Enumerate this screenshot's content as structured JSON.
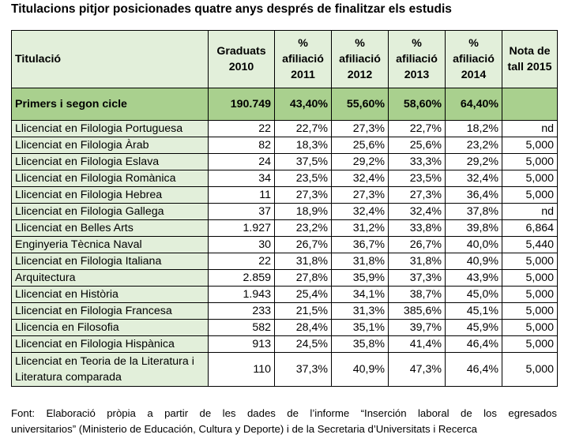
{
  "title": "Titulacions pitjor posicionades quatre anys després de finalitzar els estudis",
  "headers": {
    "name": "Titulació",
    "col1": "Graduats 2010",
    "col2": "% afiliació 2011",
    "col3": "% afiliació 2012",
    "col4": "% afiliació 2013",
    "col5": "% afiliació 2014",
    "col6": "Nota de tall 2015"
  },
  "summary": {
    "name": "Primers i segon cicle",
    "graduats": "190.749",
    "a2011": "43,40%",
    "a2012": "55,60%",
    "a2013": "58,60%",
    "a2014": "64,40%",
    "nota": ""
  },
  "rows": [
    {
      "name": "Llicenciat en Filologia Portuguesa",
      "graduats": "22",
      "a2011": "22,7%",
      "a2012": "27,3%",
      "a2013": "22,7%",
      "a2014": "18,2%",
      "nota": "nd"
    },
    {
      "name": "Llicenciat en Filologia Àrab",
      "graduats": "82",
      "a2011": "18,3%",
      "a2012": "25,6%",
      "a2013": "25,6%",
      "a2014": "23,2%",
      "nota": "5,000"
    },
    {
      "name": "Llicenciat en Filologia Eslava",
      "graduats": "24",
      "a2011": "37,5%",
      "a2012": "29,2%",
      "a2013": "33,3%",
      "a2014": "29,2%",
      "nota": "5,000"
    },
    {
      "name": "Llicenciat en Filologia Romànica",
      "graduats": "34",
      "a2011": "23,5%",
      "a2012": "32,4%",
      "a2013": "23,5%",
      "a2014": "32,4%",
      "nota": "5,000"
    },
    {
      "name": "Llicenciat en Filologia Hebrea",
      "graduats": "11",
      "a2011": "27,3%",
      "a2012": "27,3%",
      "a2013": "27,3%",
      "a2014": "36,4%",
      "nota": "5,000"
    },
    {
      "name": "Llicenciat en Filologia Gallega",
      "graduats": "37",
      "a2011": "18,9%",
      "a2012": "32,4%",
      "a2013": "32,4%",
      "a2014": "37,8%",
      "nota": "nd"
    },
    {
      "name": "Llicenciat en Belles Arts",
      "graduats": "1.927",
      "a2011": "23,2%",
      "a2012": "31,2%",
      "a2013": "33,8%",
      "a2014": "39,8%",
      "nota": "6,864"
    },
    {
      "name": "Enginyeria Tècnica Naval",
      "graduats": "30",
      "a2011": "26,7%",
      "a2012": "36,7%",
      "a2013": "26,7%",
      "a2014": "40,0%",
      "nota": "5,440"
    },
    {
      "name": "Llicenciat en Filologia Italiana",
      "graduats": "22",
      "a2011": "31,8%",
      "a2012": "31,8%",
      "a2013": "31,8%",
      "a2014": "40,9%",
      "nota": "5,000"
    },
    {
      "name": "Arquitectura",
      "graduats": "2.859",
      "a2011": "27,8%",
      "a2012": "35,9%",
      "a2013": "37,3%",
      "a2014": "43,9%",
      "nota": "5,000"
    },
    {
      "name": "Llicenciat en Història",
      "graduats": "1.943",
      "a2011": "25,4%",
      "a2012": "34,1%",
      "a2013": "38,7%",
      "a2014": "45,0%",
      "nota": "5,000"
    },
    {
      "name": "Llicenciat en Filologia Francesa",
      "graduats": "233",
      "a2011": "21,5%",
      "a2012": "31,3%",
      "a2013": "385,6%",
      "a2014": "45,1%",
      "nota": "5,000"
    },
    {
      "name": "Llicencia en Filosofia",
      "graduats": "582",
      "a2011": "28,4%",
      "a2012": "35,1%",
      "a2013": "39,7%",
      "a2014": "45,9%",
      "nota": "5,000"
    },
    {
      "name": "Llicenciat en Filologia Hispànica",
      "graduats": "913",
      "a2011": "24,5%",
      "a2012": "35,8%",
      "a2013": "41,4%",
      "a2014": "46,4%",
      "nota": "5,000"
    },
    {
      "name": "Llicenciat en Teoria de la Literatura i Literatura comparada",
      "graduats": "110",
      "a2011": "37,3%",
      "a2012": "40,9%",
      "a2013": "47,3%",
      "a2014": "46,4%",
      "nota": "5,000"
    }
  ],
  "source_line1": "Font: Elaboració pròpia a partir de les dades de l’informe “Inserción laboral de los egresados",
  "source_line2": "universitarios” (Ministerio de Educación, Cultura y Deporte) i de la Secretaria d’Universitats i Recerca"
}
